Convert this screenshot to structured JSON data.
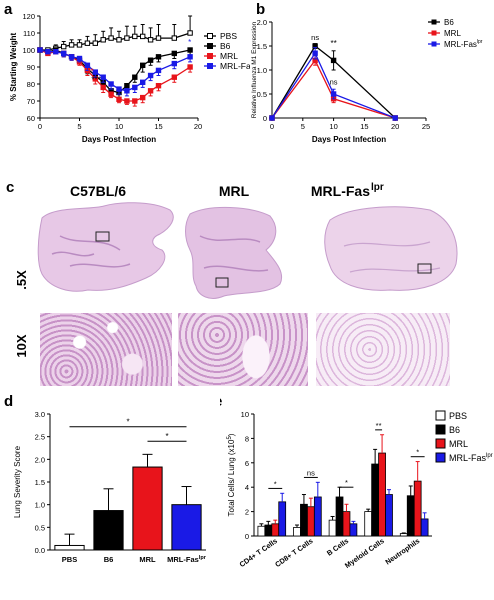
{
  "colors": {
    "PBS": "#ffffff",
    "B6": "#000000",
    "MRL": "#e8141b",
    "MRL-Faslpr": "#1a1ae6",
    "tissue": "#e7c8e6",
    "tissue_dark": "#b98bc1"
  },
  "panel_letters": {
    "a": "a",
    "b": "b",
    "c": "c",
    "d": "d",
    "e": "e"
  },
  "panel_c": {
    "col_labels": [
      "C57BL/6",
      "MRL",
      "MRL-Fas"
    ],
    "col_label_sup": "lpr",
    "row_labels": [
      ".5X",
      "10X"
    ]
  },
  "chart_data": [
    {
      "panel": "a",
      "type": "line",
      "ylabel": "% Starting Weight",
      "xlabel": "Days Post Infection",
      "xlim": [
        0,
        20
      ],
      "ylim": [
        60,
        120
      ],
      "xticks": [
        0,
        5,
        10,
        15,
        20
      ],
      "yticks": [
        60,
        70,
        80,
        90,
        100,
        110,
        120
      ],
      "legend_position": "right",
      "annotations": [
        "*",
        "**",
        "***",
        "*"
      ],
      "series": [
        {
          "name": "PBS",
          "x": [
            0,
            1,
            2,
            3,
            4,
            5,
            6,
            7,
            8,
            9,
            10,
            11,
            12,
            13,
            14,
            15,
            17,
            19
          ],
          "y": [
            100,
            100,
            101,
            102,
            103,
            103,
            104,
            104,
            106,
            107,
            106,
            107,
            108,
            108,
            106,
            107,
            107,
            110
          ],
          "err": [
            1,
            1,
            2,
            3,
            3,
            3,
            4,
            5,
            5,
            6,
            5,
            7,
            6,
            7,
            7,
            8,
            8,
            10
          ]
        },
        {
          "name": "B6",
          "x": [
            0,
            1,
            2,
            3,
            4,
            5,
            6,
            7,
            8,
            9,
            10,
            11,
            12,
            13,
            14,
            15,
            17,
            19
          ],
          "y": [
            100,
            99,
            100,
            98,
            96,
            94,
            89,
            85,
            81,
            76,
            75,
            79,
            84,
            91,
            94,
            96,
            98,
            100
          ],
          "err": [
            1,
            1,
            1,
            2,
            2,
            2,
            3,
            3,
            3,
            3,
            3,
            3,
            3,
            4,
            3,
            3,
            3,
            3
          ]
        },
        {
          "name": "MRL",
          "x": [
            0,
            1,
            2,
            3,
            4,
            5,
            6,
            7,
            8,
            9,
            10,
            11,
            12,
            13,
            14,
            15,
            17,
            19
          ],
          "y": [
            100,
            98,
            99,
            98,
            96,
            93,
            88,
            83,
            78,
            74,
            71,
            70,
            70,
            72,
            76,
            79,
            84,
            90
          ],
          "err": [
            1,
            1,
            1,
            2,
            2,
            2,
            3,
            3,
            3,
            2,
            2,
            2,
            3,
            3,
            3,
            3,
            3,
            3
          ]
        },
        {
          "name": "MRL-Fas",
          "x": [
            0,
            1,
            2,
            3,
            4,
            5,
            6,
            7,
            8,
            9,
            10,
            11,
            12,
            13,
            14,
            15,
            17,
            19
          ],
          "y": [
            100,
            99,
            99,
            98,
            96,
            95,
            91,
            87,
            84,
            80,
            77,
            76,
            78,
            81,
            85,
            88,
            92,
            96
          ],
          "err": [
            1,
            1,
            1,
            2,
            2,
            2,
            3,
            3,
            3,
            3,
            3,
            3,
            3,
            3,
            3,
            3,
            3,
            3
          ]
        }
      ]
    },
    {
      "panel": "b",
      "type": "line",
      "ylabel": "Relative Influenza M1 Expression",
      "xlabel": "Days Post Infection",
      "xlim": [
        0,
        25
      ],
      "ylim": [
        0,
        2.0
      ],
      "xticks": [
        0,
        5,
        10,
        15,
        20,
        25
      ],
      "yticks": [
        0,
        0.5,
        1.0,
        1.5,
        2.0
      ],
      "legend_position": "right",
      "annotations": [
        "ns",
        "**",
        "ns"
      ],
      "series": [
        {
          "name": "B6",
          "x": [
            0,
            7,
            10,
            20
          ],
          "y": [
            0,
            1.5,
            1.2,
            0
          ],
          "err": [
            0,
            0.05,
            0.2,
            0
          ]
        },
        {
          "name": "MRL",
          "x": [
            0,
            7,
            10,
            20
          ],
          "y": [
            0,
            1.2,
            0.4,
            0
          ],
          "err": [
            0,
            0.1,
            0.08,
            0
          ]
        },
        {
          "name": "MRL-Fas",
          "x": [
            0,
            7,
            10,
            20
          ],
          "y": [
            0,
            1.35,
            0.5,
            0
          ],
          "err": [
            0,
            0.12,
            0.1,
            0
          ]
        }
      ]
    },
    {
      "panel": "d",
      "type": "bar",
      "ylabel": "Lung Severity Score",
      "categories": [
        "PBS",
        "B6",
        "MRL",
        "MRL-Fas"
      ],
      "values": [
        0.1,
        0.87,
        1.83,
        1.0
      ],
      "errors": [
        0.25,
        0.48,
        0.28,
        0.4
      ],
      "ylim": [
        0,
        3.0
      ],
      "yticks": [
        0.0,
        0.5,
        1.0,
        1.5,
        2.0,
        2.5,
        3.0
      ],
      "annotations": [
        "*",
        "*"
      ]
    },
    {
      "panel": "e",
      "type": "bar",
      "ylabel": "Total Cells/ Lung (x10",
      "ylabel_sup": "5",
      "ylabel_tail": ")",
      "categories": [
        "CD4+ T Cells",
        "CD8+ T Cells",
        "B Cells",
        "Myeloid Cells",
        "Neutrophils"
      ],
      "ylim": [
        0,
        10
      ],
      "yticks": [
        0,
        2,
        4,
        6,
        8,
        10
      ],
      "legend_position": "right",
      "annotations": [
        "*",
        "ns",
        "*",
        "**",
        "*"
      ],
      "series": [
        {
          "name": "PBS",
          "values": [
            0.8,
            0.7,
            1.3,
            2.0,
            0.2
          ],
          "errors": [
            0.2,
            0.2,
            0.3,
            0.2,
            0.05
          ]
        },
        {
          "name": "B6",
          "values": [
            0.9,
            2.6,
            3.2,
            5.9,
            3.3
          ],
          "errors": [
            0.3,
            0.8,
            0.8,
            1.2,
            0.8
          ]
        },
        {
          "name": "MRL",
          "values": [
            1.0,
            2.4,
            2.0,
            6.8,
            4.5
          ],
          "errors": [
            0.3,
            0.7,
            0.6,
            1.5,
            1.6
          ]
        },
        {
          "name": "MRL-Fas",
          "values": [
            2.8,
            3.2,
            1.0,
            3.4,
            1.4
          ],
          "errors": [
            0.7,
            1.2,
            0.2,
            0.4,
            0.5
          ]
        }
      ]
    }
  ],
  "legend_sup": "lpr"
}
